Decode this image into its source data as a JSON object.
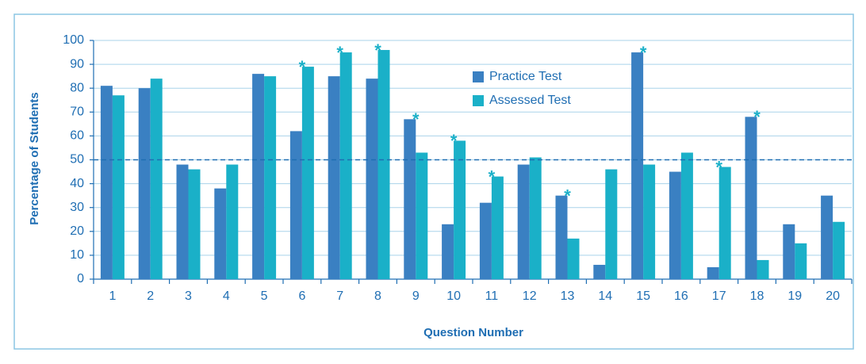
{
  "chart_data": {
    "type": "bar",
    "x_label": "Question Number",
    "y_label": "Percentage of Students",
    "categories": [
      "1",
      "2",
      "3",
      "4",
      "5",
      "6",
      "7",
      "8",
      "9",
      "10",
      "11",
      "12",
      "13",
      "14",
      "15",
      "16",
      "17",
      "18",
      "19",
      "20"
    ],
    "series": [
      {
        "name": "Practice Test",
        "color": "#3a80c2",
        "values": [
          81,
          80,
          48,
          38,
          86,
          62,
          85,
          84,
          67,
          23,
          32,
          48,
          35,
          6,
          95,
          45,
          5,
          68,
          23,
          35
        ]
      },
      {
        "name": "Assessed Test",
        "color": "#1ab0c8",
        "values": [
          77,
          84,
          46,
          48,
          85,
          89,
          95,
          96,
          53,
          58,
          43,
          51,
          17,
          46,
          48,
          53,
          47,
          8,
          15,
          24
        ]
      }
    ],
    "asterisks": [
      null,
      null,
      null,
      null,
      null,
      "*",
      "*",
      "*",
      "*",
      "*",
      "*",
      null,
      "*",
      null,
      "*",
      null,
      "*",
      "*",
      null,
      null
    ],
    "reference_line": 50,
    "ylim": [
      0,
      100
    ],
    "yticks": [
      0,
      10,
      20,
      30,
      40,
      50,
      60,
      70,
      80,
      90,
      100
    ],
    "grid": true
  }
}
